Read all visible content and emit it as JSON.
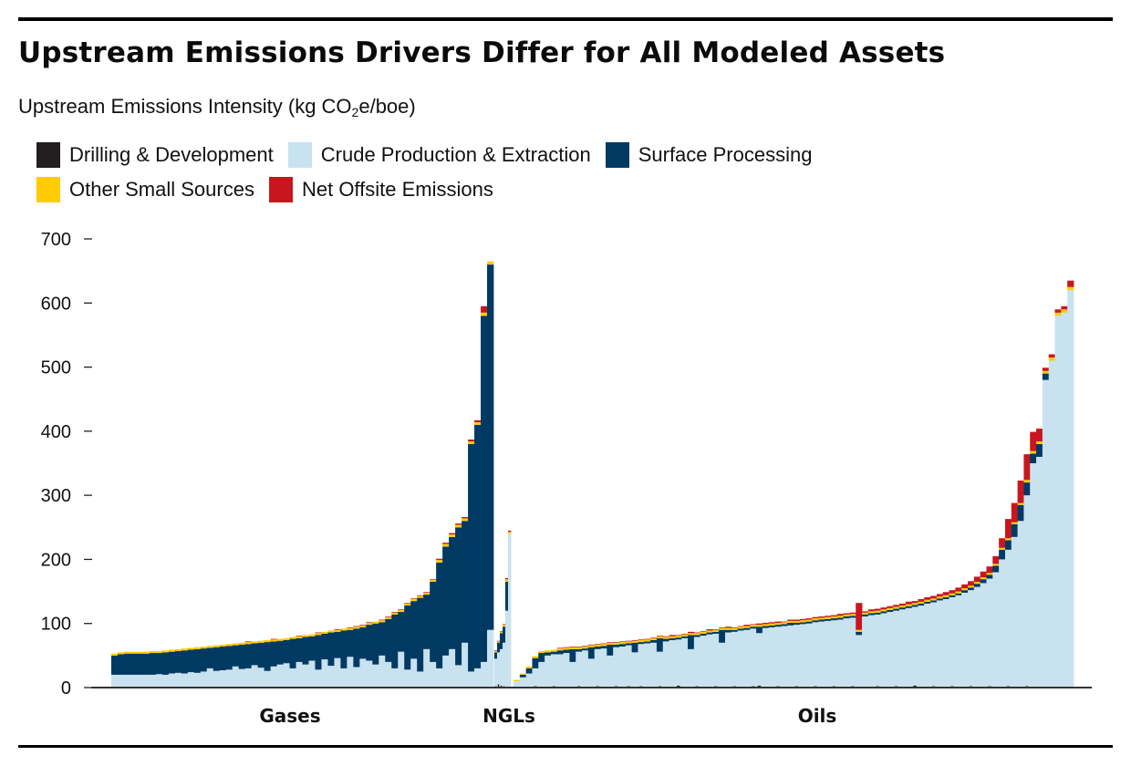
{
  "header": {
    "title": "Upstream Emissions Drivers Differ for All Modeled Assets",
    "subtitle_main": "Upstream Emissions Intensity (kg CO",
    "subtitle_sub": "2",
    "subtitle_end": "e/boe)"
  },
  "legend": [
    {
      "label": "Drilling & Development",
      "color": "#231f20"
    },
    {
      "label": "Crude Production & Extraction",
      "color": "#c9e2ef"
    },
    {
      "label": "Surface Processing",
      "color": "#003a63"
    },
    {
      "label": "Other Small Sources",
      "color": "#ffcb05"
    },
    {
      "label": "Net Offsite Emissions",
      "color": "#c8161e"
    }
  ],
  "chart_data": {
    "type": "bar",
    "stacked": true,
    "title": "Upstream Emissions Drivers Differ for All Modeled Assets",
    "ylabel": "Upstream Emissions Intensity (kg CO2e/boe)",
    "ylim": [
      0,
      700
    ],
    "yticks": [
      "0",
      "100",
      "200",
      "300",
      "400",
      "500",
      "600",
      "700"
    ],
    "ytick_values": [
      0,
      100,
      200,
      300,
      400,
      500,
      600,
      700
    ],
    "series_order": [
      "Drilling & Development",
      "Crude Production & Extraction",
      "Surface Processing",
      "Other Small Sources",
      "Net Offsite Emissions"
    ],
    "groups": [
      {
        "name": "Gases",
        "bars": [
          [
            0,
            20,
            30,
            3,
            0
          ],
          [
            0,
            20,
            32,
            3,
            0
          ],
          [
            0,
            20,
            33,
            3,
            0
          ],
          [
            0,
            20,
            33,
            3,
            0
          ],
          [
            0,
            20,
            33,
            3,
            0
          ],
          [
            0,
            20,
            33,
            3,
            0
          ],
          [
            0,
            20,
            34,
            3,
            0
          ],
          [
            0,
            21,
            33,
            3,
            0
          ],
          [
            0,
            20,
            35,
            3,
            0
          ],
          [
            0,
            22,
            34,
            3,
            0
          ],
          [
            0,
            23,
            34,
            3,
            0
          ],
          [
            0,
            22,
            36,
            3,
            0
          ],
          [
            0,
            24,
            35,
            3,
            0
          ],
          [
            0,
            23,
            37,
            3,
            0
          ],
          [
            0,
            25,
            36,
            3,
            0
          ],
          [
            0,
            30,
            32,
            3,
            0
          ],
          [
            0,
            26,
            37,
            3,
            0
          ],
          [
            0,
            27,
            37,
            3,
            0
          ],
          [
            0,
            28,
            37,
            3,
            0
          ],
          [
            0,
            33,
            33,
            3,
            0
          ],
          [
            0,
            29,
            38,
            3,
            0
          ],
          [
            0,
            30,
            38,
            3,
            1
          ],
          [
            0,
            35,
            34,
            3,
            0
          ],
          [
            0,
            31,
            39,
            3,
            0
          ],
          [
            0,
            26,
            45,
            3,
            0
          ],
          [
            0,
            33,
            39,
            3,
            1
          ],
          [
            0,
            36,
            37,
            3,
            0
          ],
          [
            0,
            38,
            36,
            3,
            0
          ],
          [
            1,
            30,
            46,
            3,
            0
          ],
          [
            0,
            40,
            37,
            3,
            1
          ],
          [
            0,
            36,
            43,
            3,
            0
          ],
          [
            1,
            42,
            38,
            3,
            0
          ],
          [
            0,
            28,
            54,
            3,
            1
          ],
          [
            0,
            44,
            40,
            3,
            0
          ],
          [
            0,
            34,
            52,
            3,
            0
          ],
          [
            0,
            46,
            41,
            3,
            1
          ],
          [
            0,
            30,
            59,
            3,
            0
          ],
          [
            0,
            48,
            42,
            3,
            1
          ],
          [
            0,
            32,
            60,
            3,
            1
          ],
          [
            0,
            45,
            49,
            3,
            1
          ],
          [
            0,
            42,
            56,
            3,
            1
          ],
          [
            0,
            36,
            64,
            3,
            0
          ],
          [
            1,
            50,
            52,
            3,
            1
          ],
          [
            0,
            40,
            67,
            3,
            1
          ],
          [
            0,
            30,
            84,
            3,
            1
          ],
          [
            0,
            56,
            62,
            3,
            1
          ],
          [
            0,
            28,
            100,
            3,
            1
          ],
          [
            0,
            45,
            90,
            3,
            1
          ],
          [
            0,
            25,
            115,
            3,
            1
          ],
          [
            0,
            60,
            85,
            3,
            1
          ],
          [
            0,
            40,
            125,
            3,
            1
          ],
          [
            0,
            30,
            165,
            4,
            2
          ],
          [
            0,
            50,
            170,
            4,
            2
          ],
          [
            0,
            60,
            175,
            4,
            2
          ],
          [
            0,
            35,
            215,
            4,
            2
          ],
          [
            0,
            70,
            190,
            4,
            2
          ],
          [
            0,
            25,
            355,
            4,
            3
          ],
          [
            0,
            30,
            380,
            4,
            3
          ],
          [
            0,
            40,
            540,
            5,
            10
          ],
          [
            0,
            90,
            570,
            5,
            0
          ]
        ]
      },
      {
        "name": "NGLs",
        "bars": [
          [
            2,
            45,
            10,
            2,
            1
          ],
          [
            5,
            55,
            15,
            2,
            1
          ],
          [
            3,
            60,
            25,
            2,
            1
          ],
          [
            2,
            70,
            25,
            3,
            1
          ],
          [
            0,
            120,
            45,
            4,
            2
          ],
          [
            0,
            240,
            0,
            3,
            2
          ]
        ]
      },
      {
        "name": "Oils",
        "bars": [
          [
            0,
            10,
            0,
            2,
            0
          ],
          [
            1,
            16,
            4,
            2,
            0
          ],
          [
            1,
            22,
            8,
            3,
            0
          ],
          [
            2,
            30,
            16,
            3,
            0
          ],
          [
            1,
            40,
            14,
            3,
            0
          ],
          [
            0,
            50,
            5,
            3,
            0
          ],
          [
            2,
            52,
            4,
            3,
            0
          ],
          [
            1,
            52,
            6,
            3,
            1
          ],
          [
            0,
            54,
            5,
            3,
            1
          ],
          [
            1,
            40,
            20,
            3,
            1
          ],
          [
            2,
            56,
            4,
            3,
            1
          ],
          [
            1,
            58,
            3,
            3,
            1
          ],
          [
            0,
            45,
            18,
            3,
            1
          ],
          [
            2,
            60,
            4,
            3,
            1
          ],
          [
            1,
            61,
            4,
            3,
            1
          ],
          [
            0,
            50,
            17,
            3,
            1
          ],
          [
            2,
            63,
            4,
            3,
            1
          ],
          [
            1,
            64,
            4,
            3,
            1
          ],
          [
            2,
            66,
            3,
            3,
            1
          ],
          [
            0,
            55,
            15,
            3,
            1
          ],
          [
            2,
            68,
            3,
            3,
            1
          ],
          [
            1,
            69,
            3,
            3,
            1
          ],
          [
            0,
            70,
            4,
            3,
            1
          ],
          [
            2,
            56,
            21,
            3,
            1
          ],
          [
            1,
            72,
            4,
            3,
            1
          ],
          [
            0,
            74,
            3,
            3,
            2
          ],
          [
            3,
            75,
            3,
            3,
            1
          ],
          [
            1,
            77,
            3,
            3,
            1
          ],
          [
            0,
            60,
            22,
            3,
            2
          ],
          [
            2,
            79,
            3,
            3,
            1
          ],
          [
            1,
            81,
            3,
            3,
            1
          ],
          [
            0,
            83,
            3,
            3,
            2
          ],
          [
            2,
            84,
            3,
            3,
            1
          ],
          [
            1,
            70,
            20,
            3,
            1
          ],
          [
            0,
            86,
            4,
            3,
            2
          ],
          [
            2,
            87,
            3,
            3,
            1
          ],
          [
            1,
            89,
            3,
            3,
            1
          ],
          [
            0,
            90,
            3,
            3,
            2
          ],
          [
            2,
            92,
            3,
            3,
            1
          ],
          [
            3,
            85,
            10,
            3,
            2
          ],
          [
            1,
            93,
            3,
            3,
            2
          ],
          [
            0,
            94,
            3,
            3,
            2
          ],
          [
            2,
            95,
            3,
            3,
            2
          ],
          [
            1,
            96,
            3,
            3,
            1
          ],
          [
            0,
            97,
            4,
            3,
            2
          ],
          [
            2,
            98,
            3,
            3,
            2
          ],
          [
            1,
            99,
            3,
            3,
            2
          ],
          [
            0,
            100,
            3,
            3,
            2
          ],
          [
            2,
            102,
            3,
            3,
            2
          ],
          [
            1,
            103,
            3,
            3,
            2
          ],
          [
            0,
            104,
            3,
            3,
            2
          ],
          [
            2,
            105,
            3,
            3,
            2
          ],
          [
            1,
            106,
            3,
            3,
            3
          ],
          [
            0,
            108,
            3,
            3,
            2
          ],
          [
            2,
            109,
            3,
            3,
            2
          ],
          [
            0,
            82,
            5,
            3,
            42
          ],
          [
            1,
            111,
            3,
            3,
            2
          ],
          [
            0,
            113,
            3,
            3,
            3
          ],
          [
            2,
            114,
            3,
            3,
            3
          ],
          [
            1,
            116,
            3,
            3,
            3
          ],
          [
            0,
            118,
            3,
            3,
            3
          ],
          [
            2,
            120,
            3,
            3,
            3
          ],
          [
            1,
            122,
            3,
            3,
            3
          ],
          [
            0,
            124,
            3,
            3,
            4
          ],
          [
            3,
            126,
            3,
            3,
            3
          ],
          [
            1,
            128,
            3,
            3,
            4
          ],
          [
            0,
            131,
            3,
            3,
            4
          ],
          [
            2,
            133,
            3,
            3,
            4
          ],
          [
            1,
            136,
            3,
            3,
            4
          ],
          [
            0,
            138,
            3,
            3,
            5
          ],
          [
            2,
            141,
            3,
            3,
            5
          ],
          [
            1,
            144,
            3,
            3,
            6
          ],
          [
            0,
            148,
            4,
            3,
            6
          ],
          [
            2,
            152,
            4,
            3,
            7
          ],
          [
            1,
            157,
            5,
            3,
            8
          ],
          [
            0,
            163,
            6,
            3,
            9
          ],
          [
            2,
            170,
            6,
            3,
            10
          ],
          [
            1,
            180,
            10,
            3,
            12
          ],
          [
            0,
            200,
            15,
            3,
            15
          ],
          [
            2,
            215,
            15,
            3,
            30
          ],
          [
            1,
            235,
            20,
            3,
            30
          ],
          [
            0,
            260,
            25,
            3,
            35
          ],
          [
            2,
            300,
            20,
            4,
            40
          ],
          [
            1,
            350,
            15,
            4,
            30
          ],
          [
            0,
            360,
            20,
            4,
            20
          ],
          [
            0,
            480,
            10,
            4,
            5
          ],
          [
            0,
            510,
            0,
            5,
            5
          ],
          [
            0,
            580,
            0,
            5,
            5
          ],
          [
            0,
            585,
            0,
            5,
            5
          ],
          [
            0,
            620,
            0,
            5,
            10
          ]
        ]
      }
    ]
  }
}
